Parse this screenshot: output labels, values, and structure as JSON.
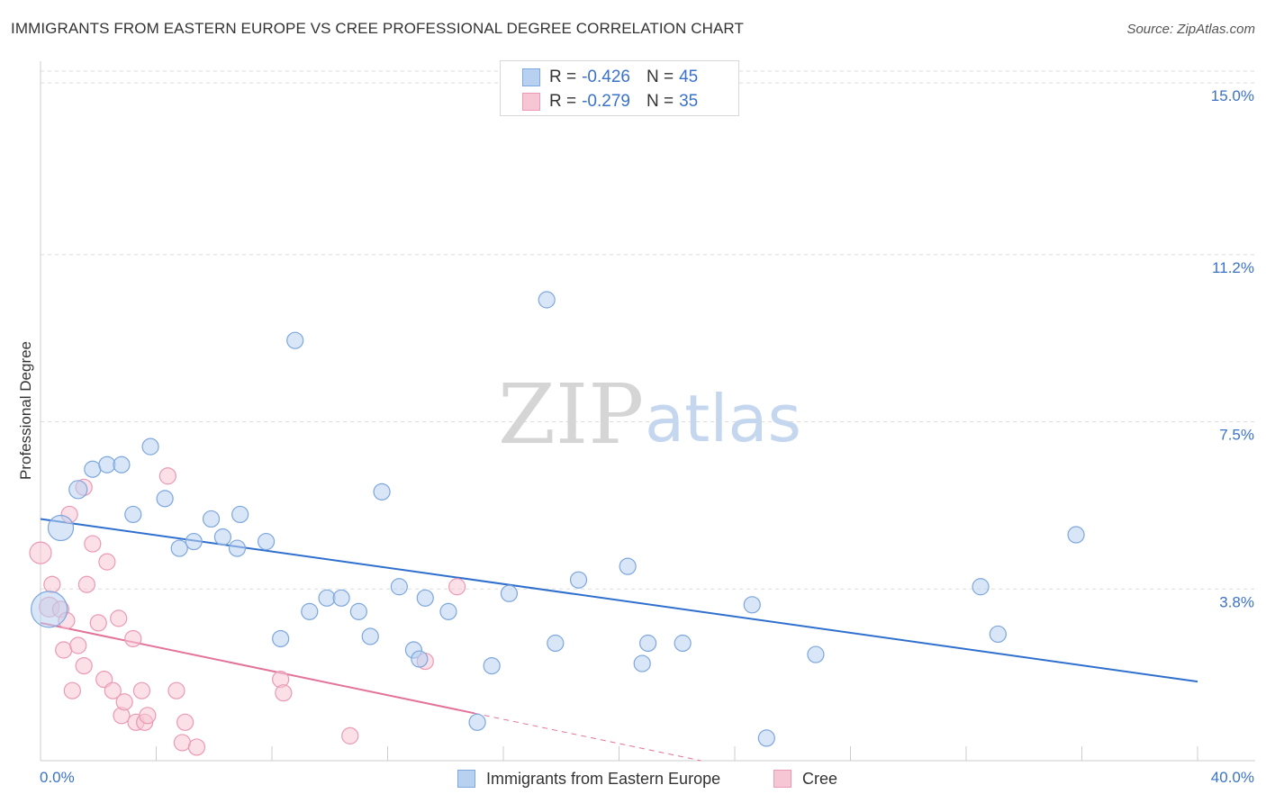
{
  "title": "IMMIGRANTS FROM EASTERN EUROPE VS CREE PROFESSIONAL DEGREE CORRELATION CHART",
  "source": "Source: ZipAtlas.com",
  "watermark": {
    "zip": "ZIP",
    "atlas": "atlas"
  },
  "colors": {
    "blue_fill": "#b8d1f1",
    "blue_stroke": "#7ea7dd",
    "blue_line": "#2f6fce",
    "pink_fill": "#f7c6d5",
    "pink_stroke": "#eb99b4",
    "pink_line": "#e3739b",
    "grid": "#dddddd",
    "axis_text": "#3b72c9"
  },
  "legend": {
    "rows": [
      {
        "r_label": "R =",
        "r_value": "-0.426",
        "n_label": "N =",
        "n_value": "45"
      },
      {
        "r_label": "R =",
        "r_value": "-0.279",
        "n_label": "N =",
        "n_value": "35"
      }
    ]
  },
  "bottom_legend": [
    {
      "label": "Immigrants from Eastern Europe"
    },
    {
      "label": "Cree"
    }
  ],
  "chart_data": {
    "type": "scatter",
    "title": "IMMIGRANTS FROM EASTERN EUROPE VS CREE PROFESSIONAL DEGREE CORRELATION CHART",
    "xlabel": "",
    "ylabel": "Professional Degree",
    "xlim": [
      0,
      40
    ],
    "ylim": [
      0,
      15.4
    ],
    "x_tick_labels": [
      "0.0%",
      "40.0%"
    ],
    "y_ticks": [
      3.8,
      7.5,
      11.2,
      15.0
    ],
    "y_tick_labels": [
      "3.8%",
      "7.5%",
      "11.2%",
      "15.0%"
    ],
    "grid": true,
    "legend_position": "top-center",
    "series": [
      {
        "name": "Immigrants from Eastern Europe",
        "r": -0.426,
        "n": 45,
        "trend": {
          "x0": 0,
          "y0": 5.35,
          "x1": 40,
          "y1": 1.75
        },
        "points": [
          [
            0.3,
            3.35,
            20
          ],
          [
            0.7,
            5.15,
            14
          ],
          [
            1.3,
            6.0,
            10
          ],
          [
            1.8,
            6.45,
            9
          ],
          [
            2.3,
            6.55,
            9
          ],
          [
            2.8,
            6.55,
            9
          ],
          [
            3.2,
            5.45,
            9
          ],
          [
            3.8,
            6.95,
            9
          ],
          [
            4.3,
            5.8,
            9
          ],
          [
            4.8,
            4.7,
            9
          ],
          [
            5.3,
            4.85,
            9
          ],
          [
            5.9,
            5.35,
            9
          ],
          [
            6.3,
            4.95,
            9
          ],
          [
            6.8,
            4.7,
            9
          ],
          [
            6.9,
            5.45,
            9
          ],
          [
            7.8,
            4.85,
            9
          ],
          [
            8.3,
            2.7,
            9
          ],
          [
            8.8,
            9.3,
            9
          ],
          [
            9.3,
            3.3,
            9
          ],
          [
            9.9,
            3.6,
            9
          ],
          [
            10.4,
            3.6,
            9
          ],
          [
            11.0,
            3.3,
            9
          ],
          [
            11.4,
            2.75,
            9
          ],
          [
            11.8,
            5.95,
            9
          ],
          [
            12.4,
            3.85,
            9
          ],
          [
            12.9,
            2.45,
            9
          ],
          [
            13.3,
            3.6,
            9
          ],
          [
            13.1,
            2.25,
            9
          ],
          [
            14.1,
            3.3,
            9
          ],
          [
            15.1,
            0.85,
            9
          ],
          [
            15.6,
            2.1,
            9
          ],
          [
            16.2,
            3.7,
            9
          ],
          [
            17.5,
            10.2,
            9
          ],
          [
            17.8,
            2.6,
            9
          ],
          [
            18.6,
            4.0,
            9
          ],
          [
            20.3,
            4.3,
            9
          ],
          [
            20.8,
            2.15,
            9
          ],
          [
            21.0,
            2.6,
            9
          ],
          [
            22.2,
            2.6,
            9
          ],
          [
            24.6,
            3.45,
            9
          ],
          [
            25.1,
            0.5,
            9
          ],
          [
            26.8,
            2.35,
            9
          ],
          [
            32.5,
            3.85,
            9
          ],
          [
            33.1,
            2.8,
            9
          ],
          [
            35.8,
            5.0,
            9
          ]
        ]
      },
      {
        "name": "Cree",
        "r": -0.279,
        "n": 35,
        "trend": {
          "x0": 0,
          "y0": 3.05,
          "x1": 15.0,
          "y1": 1.05
        },
        "trend_dashed_to": {
          "x": 40,
          "y": -2.3
        },
        "points": [
          [
            0.0,
            4.6,
            12
          ],
          [
            0.3,
            3.4,
            11
          ],
          [
            0.4,
            3.9,
            9
          ],
          [
            0.7,
            3.35,
            9
          ],
          [
            0.8,
            2.45,
            9
          ],
          [
            0.9,
            3.1,
            9
          ],
          [
            1.0,
            5.45,
            9
          ],
          [
            1.1,
            1.55,
            9
          ],
          [
            1.3,
            2.55,
            9
          ],
          [
            1.5,
            6.05,
            9
          ],
          [
            1.5,
            2.1,
            9
          ],
          [
            1.6,
            3.9,
            9
          ],
          [
            1.8,
            4.8,
            9
          ],
          [
            2.0,
            3.05,
            9
          ],
          [
            2.2,
            1.8,
            9
          ],
          [
            2.3,
            4.4,
            9
          ],
          [
            2.5,
            1.55,
            9
          ],
          [
            2.7,
            3.15,
            9
          ],
          [
            2.8,
            1.0,
            9
          ],
          [
            2.9,
            1.3,
            9
          ],
          [
            3.2,
            2.7,
            9
          ],
          [
            3.3,
            0.85,
            9
          ],
          [
            3.5,
            1.55,
            9
          ],
          [
            3.6,
            0.85,
            9
          ],
          [
            3.7,
            1.0,
            9
          ],
          [
            4.4,
            6.3,
            9
          ],
          [
            4.7,
            1.55,
            9
          ],
          [
            4.9,
            0.4,
            9
          ],
          [
            5.0,
            0.85,
            9
          ],
          [
            5.4,
            0.3,
            9
          ],
          [
            8.3,
            1.8,
            9
          ],
          [
            8.4,
            1.5,
            9
          ],
          [
            10.7,
            0.55,
            9
          ],
          [
            13.3,
            2.2,
            9
          ],
          [
            14.4,
            3.85,
            9
          ]
        ]
      }
    ]
  }
}
